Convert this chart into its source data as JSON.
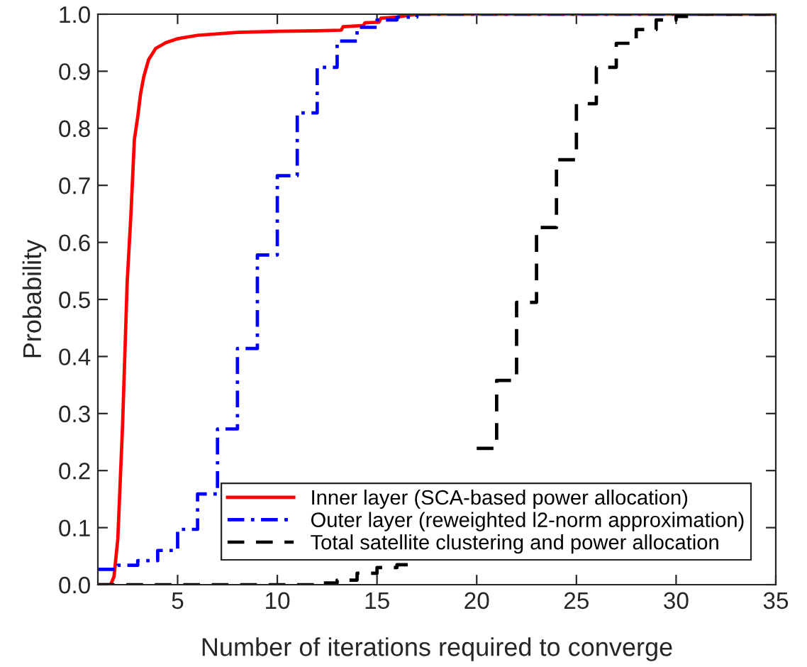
{
  "chart_data": {
    "type": "line",
    "xlabel": "Number of iterations required to converge",
    "ylabel": "Probability",
    "xlim": [
      1,
      35
    ],
    "xticks": [
      5,
      10,
      15,
      20,
      25,
      30,
      35
    ],
    "ylim": [
      0,
      1
    ],
    "yticks": [
      {
        "value": 0,
        "label": "0.0"
      },
      {
        "value": 0.1,
        "label": "0.1"
      },
      {
        "value": 0.2,
        "label": "0.2"
      },
      {
        "value": 0.3,
        "label": "0.3"
      },
      {
        "value": 0.4,
        "label": "0.4"
      },
      {
        "value": 0.5,
        "label": "0.5"
      },
      {
        "value": 0.6,
        "label": "0.6"
      },
      {
        "value": 0.7,
        "label": "0.7"
      },
      {
        "value": 0.8,
        "label": "0.8"
      },
      {
        "value": 0.9,
        "label": "0.9"
      },
      {
        "value": 1,
        "label": "1.0"
      }
    ],
    "grid": false,
    "legend": "bottom right",
    "series": [
      {
        "name": "Inner layer (SCA-based power allocation)",
        "line_style": "solid",
        "color": "#ff0000",
        "x": [
          1,
          1.64,
          1.81,
          2.0,
          2.24,
          2.47,
          2.66,
          2.83,
          3.0,
          3.14,
          3.3,
          3.54,
          3.9,
          4.4,
          5,
          6,
          8,
          10,
          12,
          13.2,
          13.3,
          14.3,
          14.4,
          15.1,
          15.2,
          16,
          17,
          35
        ],
        "values": [
          0,
          0,
          0.014,
          0.08,
          0.28,
          0.53,
          0.65,
          0.78,
          0.82,
          0.86,
          0.89,
          0.92,
          0.94,
          0.95,
          0.957,
          0.963,
          0.968,
          0.97,
          0.971,
          0.972,
          0.978,
          0.98,
          0.985,
          0.986,
          0.993,
          0.995,
          1,
          1
        ]
      },
      {
        "name": "Outer layer (reweighted l2-norm approximation)",
        "type": "step",
        "line_style": "dashdot",
        "color": "#0000ff",
        "x": [
          1,
          2,
          3,
          4,
          5,
          6,
          7,
          8,
          9,
          10,
          11,
          12,
          13,
          14,
          15,
          16,
          17,
          35
        ],
        "values": [
          0.027,
          0.034,
          0.042,
          0.06,
          0.097,
          0.159,
          0.273,
          0.414,
          0.578,
          0.717,
          0.827,
          0.907,
          0.953,
          0.977,
          0.99,
          0.995,
          1,
          1
        ]
      },
      {
        "name": "Total satellite clustering and power allocation",
        "type": "step",
        "line_style": "dashed",
        "color": "#000000",
        "x": [
          1,
          12,
          13,
          14,
          15,
          16,
          17,
          18,
          19,
          20,
          21,
          22,
          23,
          24,
          25,
          26,
          27,
          28,
          29,
          30,
          31,
          35
        ],
        "values": [
          0,
          0.003,
          0.008,
          0.02,
          0.03,
          0.035,
          null,
          null,
          null,
          0.239,
          0.358,
          0.495,
          0.626,
          0.745,
          0.843,
          0.907,
          0.949,
          0.973,
          0.99,
          0.996,
          1,
          1
        ]
      }
    ]
  }
}
